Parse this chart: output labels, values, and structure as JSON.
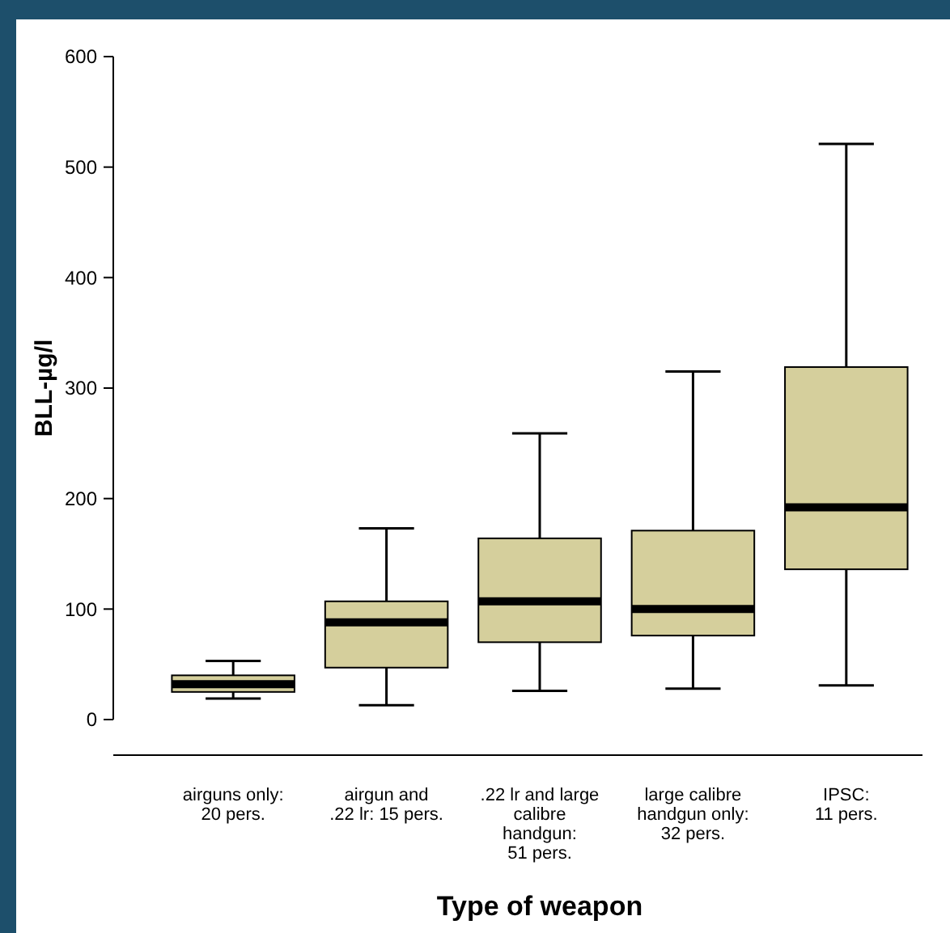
{
  "chart_data": {
    "type": "box",
    "xlabel": "Type of weapon",
    "ylabel": "BLL-µg/l",
    "categories": [
      "airguns only:\n20 pers.",
      "airgun and\n.22 lr: 15 pers.",
      ".22 lr and large\ncalibre\nhandgun:\n51 pers.",
      "large calibre\nhandgun only:\n32 pers.",
      "IPSC:\n11 pers."
    ],
    "boxes": [
      {
        "low": 19,
        "q1": 25,
        "median": 32,
        "q3": 40,
        "high": 53
      },
      {
        "low": 13,
        "q1": 47,
        "median": 88,
        "q3": 107,
        "high": 173
      },
      {
        "low": 26,
        "q1": 70,
        "median": 107,
        "q3": 164,
        "high": 259
      },
      {
        "low": 28,
        "q1": 76,
        "median": 100,
        "q3": 171,
        "high": 315
      },
      {
        "low": 31,
        "q1": 136,
        "median": 192,
        "q3": 319,
        "high": 521
      }
    ],
    "color": "#d5cf9c",
    "ylim": [
      0,
      600
    ],
    "yticks": [
      0,
      100,
      200,
      300,
      400,
      500,
      600
    ],
    "grid": false
  }
}
